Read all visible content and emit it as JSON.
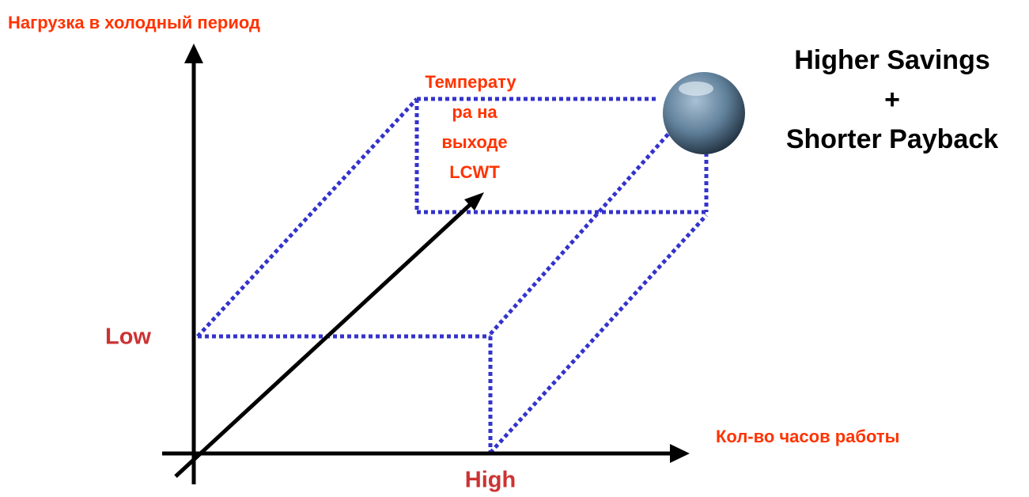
{
  "y_axis_label": "Нагрузка в холодный период",
  "x_axis_label": "Кол-во часов работы",
  "z_axis_label_lines": [
    "Температу",
    "ра на",
    "выходе",
    "LCWT"
  ],
  "low_label": "Low",
  "high_label": "High",
  "result_lines": [
    "Higher Savings",
    "+",
    "Shorter Payback"
  ]
}
